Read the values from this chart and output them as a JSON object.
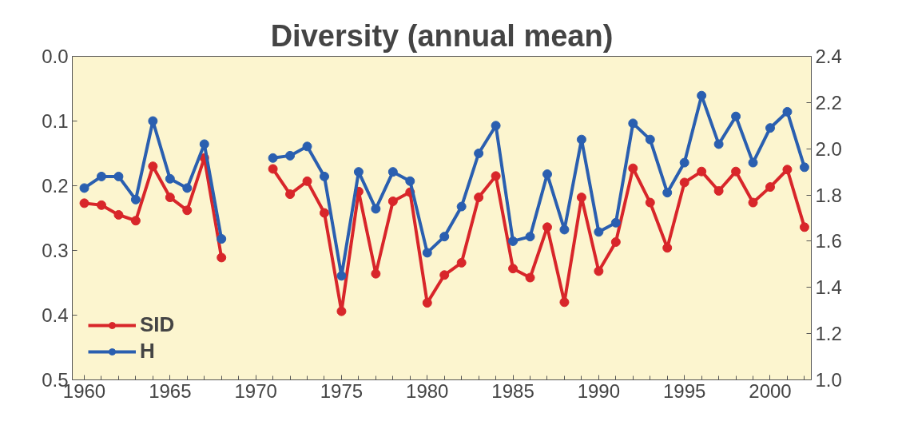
{
  "chart_data": {
    "type": "line",
    "title": "Diversity (annual mean)",
    "x": [
      1960,
      1961,
      1962,
      1963,
      1964,
      1965,
      1966,
      1967,
      1968,
      1969,
      1970,
      1971,
      1972,
      1973,
      1974,
      1975,
      1976,
      1977,
      1978,
      1979,
      1980,
      1981,
      1982,
      1983,
      1984,
      1985,
      1986,
      1987,
      1988,
      1989,
      1990,
      1991,
      1992,
      1993,
      1994,
      1995,
      1996,
      1997,
      1998,
      1999,
      2000,
      2001,
      2002
    ],
    "series": [
      {
        "name": "SID",
        "color": "#d8262a",
        "values": [
          0.227,
          0.23,
          0.245,
          0.254,
          0.17,
          0.218,
          0.238,
          0.157,
          0.311,
          null,
          null,
          0.174,
          0.213,
          0.193,
          0.242,
          0.394,
          0.209,
          0.336,
          0.224,
          0.21,
          0.381,
          0.338,
          0.319,
          0.218,
          0.185,
          0.328,
          0.342,
          0.264,
          0.38,
          0.218,
          0.332,
          0.287,
          0.173,
          0.226,
          0.296,
          0.195,
          0.178,
          0.208,
          0.178,
          0.226,
          0.202,
          0.175,
          0.264
        ]
      },
      {
        "name": "H",
        "color": "#2a5fb0",
        "axis": "y2",
        "values": [
          1.83,
          1.88,
          1.88,
          1.78,
          2.12,
          1.87,
          1.83,
          2.02,
          1.61,
          null,
          null,
          1.96,
          1.97,
          2.01,
          1.88,
          1.45,
          1.9,
          1.74,
          1.9,
          1.86,
          1.55,
          1.62,
          1.75,
          1.98,
          2.1,
          1.6,
          1.62,
          1.89,
          1.65,
          2.04,
          1.64,
          1.68,
          2.11,
          2.04,
          1.81,
          1.94,
          2.23,
          2.02,
          2.14,
          1.94,
          2.09,
          2.16,
          1.92
        ]
      }
    ],
    "xlim": [
      1959.3,
      2002.4
    ],
    "xticks": [
      1960,
      1965,
      1970,
      1975,
      1980,
      1985,
      1990,
      1995,
      2000
    ],
    "ylim": [
      0.5,
      0.0
    ],
    "yticks": [
      "0.0",
      0.1,
      0.2,
      0.3,
      0.4,
      0.5
    ],
    "y2lim": [
      1.0,
      2.4
    ],
    "y2ticks": [
      "1.0",
      1.2,
      1.4,
      1.6,
      1.8,
      "2.0",
      2.2,
      2.4
    ],
    "grid": false,
    "legend": "bottom left",
    "marker": "circle",
    "line_style": "solid"
  }
}
